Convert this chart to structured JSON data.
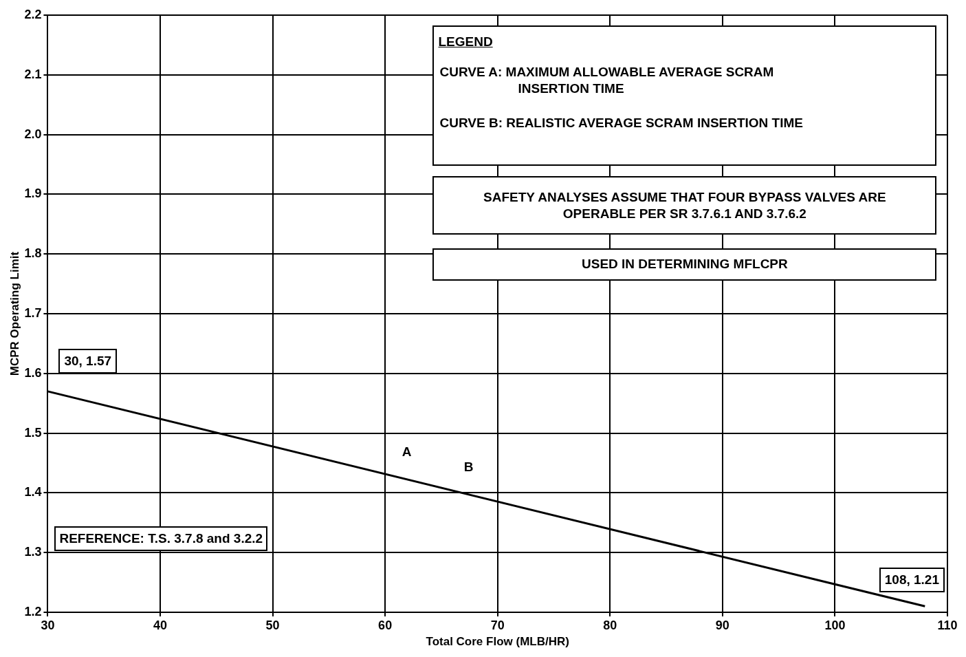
{
  "chart_data": {
    "type": "line",
    "xlabel": "Total Core Flow (MLB/HR)",
    "ylabel": "MCPR Operating Limit",
    "x": [
      30,
      108
    ],
    "series": [
      {
        "color": "#000000",
        "values": [
          1.57,
          1.21
        ]
      }
    ],
    "xlim": [
      30,
      110
    ],
    "xticks": [
      30,
      40,
      50,
      60,
      70,
      80,
      90,
      100,
      110
    ],
    "ylim": [
      1.2,
      2.2
    ],
    "yticks": [
      1.2,
      1.3,
      1.4,
      1.5,
      1.6,
      1.7,
      1.8,
      1.9,
      {
        "value": 2,
        "label": "2.0"
      },
      2.1,
      2.2
    ],
    "grid": true,
    "marker": "none",
    "line_style": "solid",
    "legend": false,
    "annotations": [
      "LEGEND",
      "CURVE A: MAXIMUM ALLOWABLE AVERAGE SCRAM INSERTION TIME",
      "CURVE B: REALISTIC AVERAGE SCRAM INSERTION TIME",
      "SAFETY ANALYSES ASSUME THAT FOUR BYPASS VALVES ARE OPERABLE PER SR 3.7.6.1 AND 3.7.6.2",
      "USED IN DETERMINING MFLCPR",
      "REFERENCE: T.S. 3.7.8 and 3.2.2",
      {
        "text": "30, 1.57",
        "x": 30,
        "y": 1.57
      },
      {
        "text": "108, 1.21",
        "x": 108,
        "y": 1.21
      },
      {
        "text": "A",
        "x": 62,
        "y": 1.4223
      },
      {
        "text": "B",
        "x": 67.5,
        "y": 1.3969
      }
    ]
  }
}
